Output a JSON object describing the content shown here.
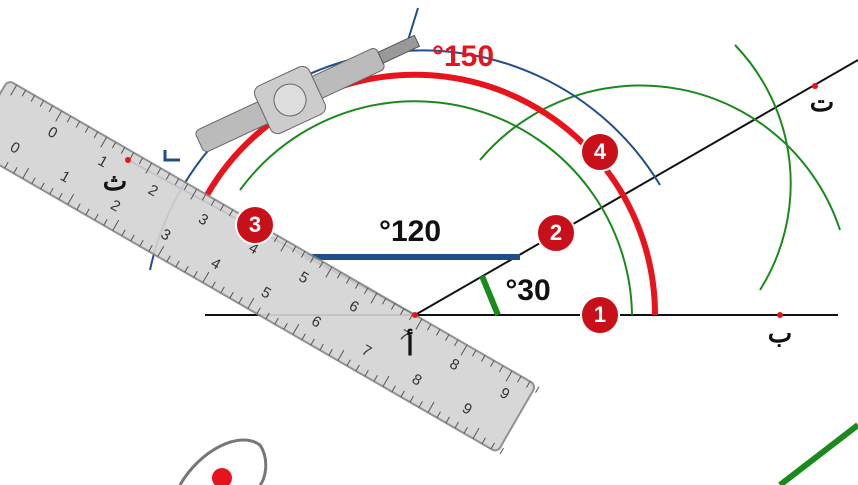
{
  "angles": {
    "a150": "°150",
    "a120": "°120",
    "a30": "°30"
  },
  "steps": [
    "1",
    "2",
    "3",
    "4"
  ],
  "points": {
    "alif": "أ",
    "ba": "ب",
    "ta": "ت",
    "tha": "ث"
  },
  "ruler": {
    "top_numbers": [
      "0",
      "1",
      "2",
      "3",
      "4",
      "5",
      "6",
      "7",
      "8",
      "9"
    ],
    "bottom_numbers": [
      "0",
      "1",
      "2",
      "3",
      "4",
      "5",
      "6",
      "7",
      "8",
      "9"
    ]
  }
}
